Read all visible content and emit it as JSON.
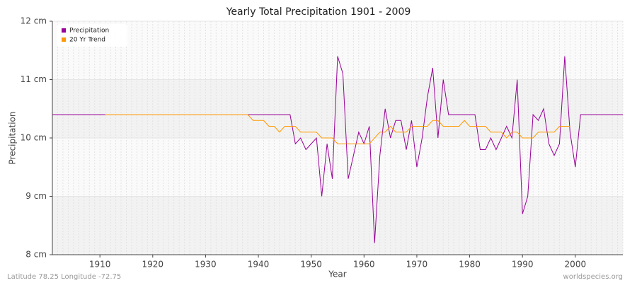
{
  "chart_data": {
    "type": "line",
    "title": "Yearly Total Precipitation 1901 - 2009",
    "x_label": "Year",
    "y_label": "Precipitation",
    "footer_left": "Latitude 78.25 Longitude -72.75",
    "footer_right": "worldspecies.org",
    "legend": "upper left",
    "grid": true,
    "x": [
      1901,
      1902,
      1903,
      1904,
      1905,
      1906,
      1907,
      1908,
      1909,
      1910,
      1911,
      1912,
      1913,
      1914,
      1915,
      1916,
      1917,
      1918,
      1919,
      1920,
      1921,
      1922,
      1923,
      1924,
      1925,
      1926,
      1927,
      1928,
      1929,
      1930,
      1931,
      1932,
      1933,
      1934,
      1935,
      1936,
      1937,
      1938,
      1939,
      1940,
      1941,
      1942,
      1943,
      1944,
      1945,
      1946,
      1947,
      1948,
      1949,
      1950,
      1951,
      1952,
      1953,
      1954,
      1955,
      1956,
      1957,
      1958,
      1959,
      1960,
      1961,
      1962,
      1963,
      1964,
      1965,
      1966,
      1967,
      1968,
      1969,
      1970,
      1971,
      1972,
      1973,
      1974,
      1975,
      1976,
      1977,
      1978,
      1979,
      1980,
      1981,
      1982,
      1983,
      1984,
      1985,
      1986,
      1987,
      1988,
      1989,
      1990,
      1991,
      1992,
      1993,
      1994,
      1995,
      1996,
      1997,
      1998,
      1999,
      2000,
      2001,
      2002,
      2003,
      2004,
      2005,
      2006,
      2007,
      2008,
      2009
    ],
    "xlim": [
      1901,
      2009
    ],
    "xticks": [
      1910,
      1920,
      1930,
      1940,
      1950,
      1960,
      1970,
      1980,
      1990,
      2000
    ],
    "ylim": [
      8,
      12
    ],
    "yticks": [
      {
        "value": 8,
        "label": "8 cm"
      },
      {
        "value": 9,
        "label": "9 cm"
      },
      {
        "value": 10,
        "label": "10 cm"
      },
      {
        "value": 11,
        "label": "11 cm"
      },
      {
        "value": 12,
        "label": "12 cm"
      }
    ],
    "series": [
      {
        "name": "Precipitation",
        "color": "#990099",
        "values": [
          10.4,
          10.4,
          10.4,
          10.4,
          10.4,
          10.4,
          10.4,
          10.4,
          10.4,
          10.4,
          10.4,
          10.4,
          10.4,
          10.4,
          10.4,
          10.4,
          10.4,
          10.4,
          10.4,
          10.4,
          10.4,
          10.4,
          10.4,
          10.4,
          10.4,
          10.4,
          10.4,
          10.4,
          10.4,
          10.4,
          10.4,
          10.4,
          10.4,
          10.4,
          10.4,
          10.4,
          10.4,
          10.4,
          10.4,
          10.4,
          10.4,
          10.4,
          10.4,
          10.4,
          10.4,
          10.4,
          9.9,
          10.0,
          9.8,
          9.9,
          10.0,
          9.0,
          9.9,
          9.3,
          11.4,
          11.1,
          9.3,
          9.7,
          10.1,
          9.9,
          10.2,
          8.2,
          9.7,
          10.5,
          10.0,
          10.3,
          10.3,
          9.8,
          10.3,
          9.5,
          10.0,
          10.7,
          11.2,
          10.0,
          11.0,
          10.4,
          10.4,
          10.4,
          10.4,
          10.4,
          10.4,
          9.8,
          9.8,
          10.0,
          9.8,
          10.0,
          10.2,
          10.0,
          11.0,
          8.7,
          9.0,
          10.4,
          10.3,
          10.5,
          9.9,
          9.7,
          9.9,
          11.4,
          10.1,
          9.5,
          10.4,
          10.4,
          10.4,
          10.4,
          10.4,
          10.4,
          10.4,
          10.4,
          10.4
        ]
      },
      {
        "name": "20 Yr Trend",
        "color": "#ff9900",
        "values": [
          null,
          null,
          null,
          null,
          null,
          null,
          null,
          null,
          null,
          null,
          10.4,
          10.4,
          10.4,
          10.4,
          10.4,
          10.4,
          10.4,
          10.4,
          10.4,
          10.4,
          10.4,
          10.4,
          10.4,
          10.4,
          10.4,
          10.4,
          10.4,
          10.4,
          10.4,
          10.4,
          10.4,
          10.4,
          10.4,
          10.4,
          10.4,
          10.4,
          10.4,
          10.4,
          10.3,
          10.3,
          10.3,
          10.2,
          10.2,
          10.1,
          10.2,
          10.2,
          10.2,
          10.1,
          10.1,
          10.1,
          10.1,
          10.0,
          10.0,
          10.0,
          9.9,
          9.9,
          9.9,
          9.9,
          9.9,
          9.9,
          9.9,
          10.0,
          10.1,
          10.1,
          10.2,
          10.1,
          10.1,
          10.1,
          10.2,
          10.2,
          10.2,
          10.2,
          10.3,
          10.3,
          10.2,
          10.2,
          10.2,
          10.2,
          10.3,
          10.2,
          10.2,
          10.2,
          10.2,
          10.1,
          10.1,
          10.1,
          10.0,
          10.1,
          10.1,
          10.0,
          10.0,
          10.0,
          10.1,
          10.1,
          10.1,
          10.1,
          10.2,
          10.2,
          10.2,
          null,
          null,
          null,
          null,
          null,
          null,
          null,
          null,
          null,
          null
        ]
      }
    ]
  }
}
